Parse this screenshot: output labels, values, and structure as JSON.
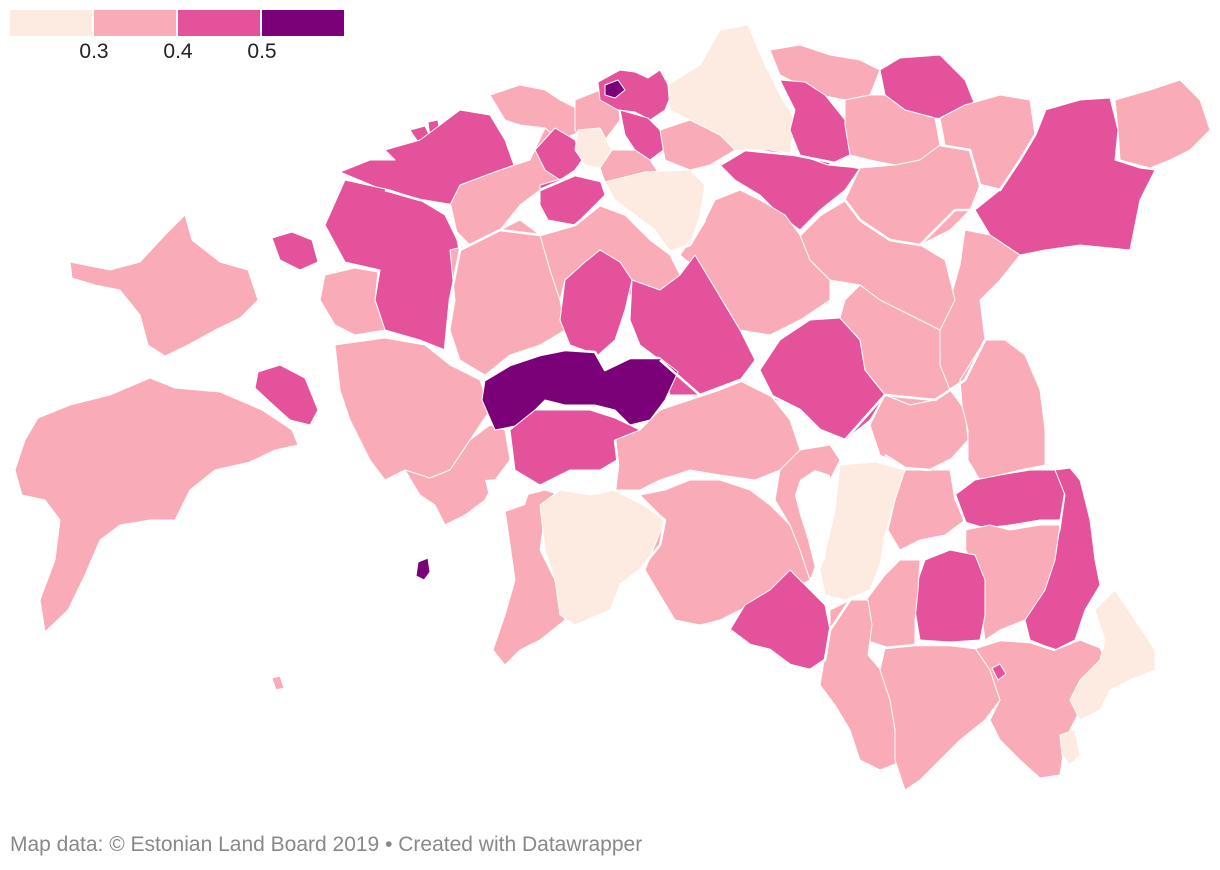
{
  "legend": {
    "colors": [
      "#fdebe2",
      "#f9abb8",
      "#e3529b",
      "#7a0177"
    ],
    "ticks": [
      "0.3",
      "0.4",
      "0.5"
    ]
  },
  "credit": "Map data: © Estonian Land Board 2019 • Created with Datawrapper"
}
